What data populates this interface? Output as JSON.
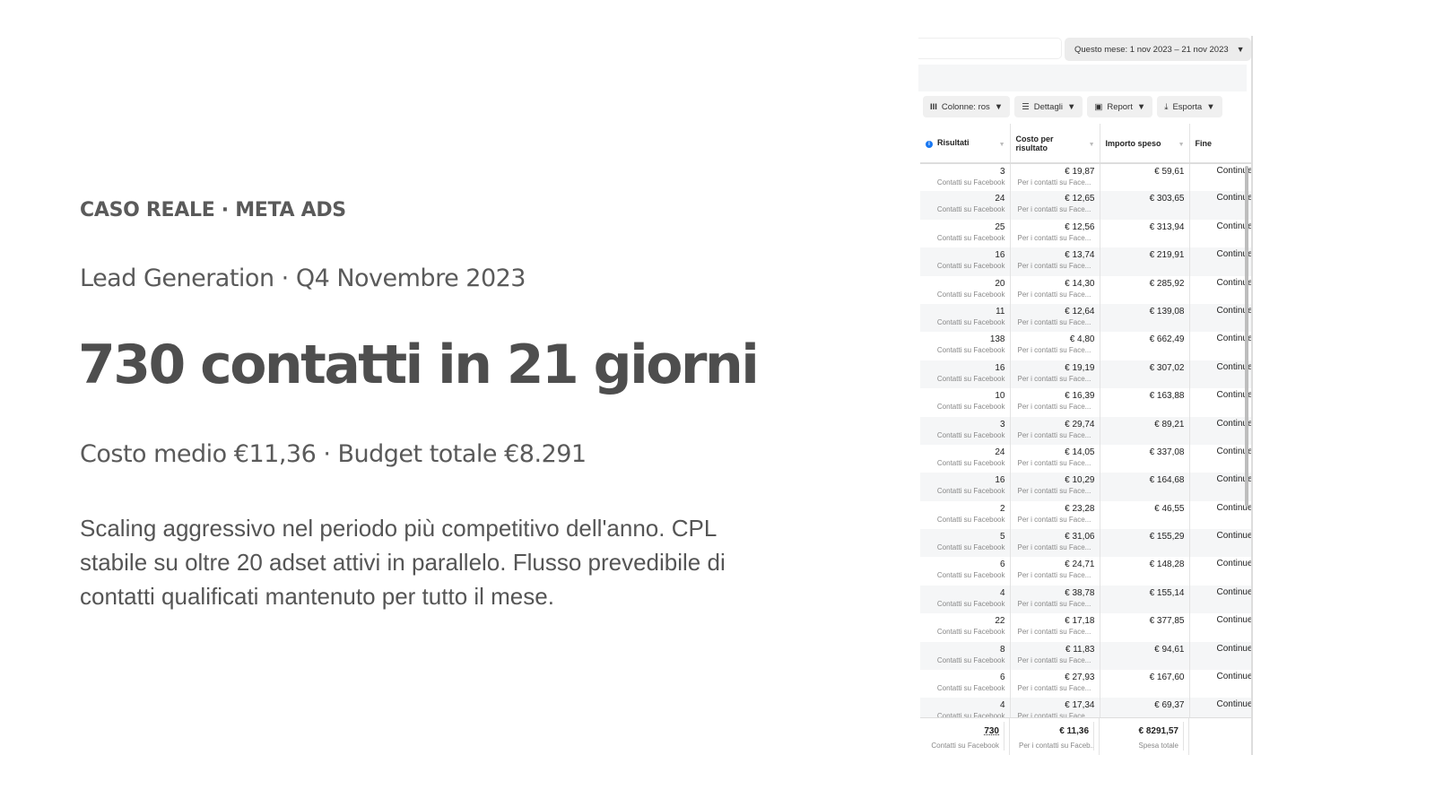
{
  "left": {
    "eyebrow": "CASO REALE · META ADS",
    "subtitle": "Lead Generation · Q4 Novembre 2023",
    "headline": "730 contatti in 21 giorni",
    "cost_line": "Costo medio €11,36 · Budget totale €8.291",
    "paragraph": "Scaling aggressivo nel periodo più competitivo dell'anno. CPL stabile su oltre 20 adset attivi in parallelo. Flusso prevedibile di contatti qualificati mantenuto per tutto il mese."
  },
  "ads": {
    "date_range": "Questo mese: 1 nov 2023 – 21 nov 2023",
    "toolbar": {
      "columns": "Colonne: ros",
      "details": "Dettagli",
      "report": "Report",
      "export": "Esporta"
    },
    "headers": {
      "results": "Risultati",
      "cost": "Costo per risultato",
      "spent": "Importo speso",
      "end": "Fine"
    },
    "result_sub": "Contatti su Facebook",
    "cost_sub": "Per i contatti su Face...",
    "end_value": "Continue",
    "rows": [
      {
        "results": "3",
        "cost": "€ 19,87",
        "spent": "€ 59,61"
      },
      {
        "results": "24",
        "cost": "€ 12,65",
        "spent": "€ 303,65"
      },
      {
        "results": "25",
        "cost": "€ 12,56",
        "spent": "€ 313,94"
      },
      {
        "results": "16",
        "cost": "€ 13,74",
        "spent": "€ 219,91"
      },
      {
        "results": "20",
        "cost": "€ 14,30",
        "spent": "€ 285,92"
      },
      {
        "results": "11",
        "cost": "€ 12,64",
        "spent": "€ 139,08"
      },
      {
        "results": "138",
        "cost": "€ 4,80",
        "spent": "€ 662,49"
      },
      {
        "results": "16",
        "cost": "€ 19,19",
        "spent": "€ 307,02"
      },
      {
        "results": "10",
        "cost": "€ 16,39",
        "spent": "€ 163,88"
      },
      {
        "results": "3",
        "cost": "€ 29,74",
        "spent": "€ 89,21"
      },
      {
        "results": "24",
        "cost": "€ 14,05",
        "spent": "€ 337,08"
      },
      {
        "results": "16",
        "cost": "€ 10,29",
        "spent": "€ 164,68"
      },
      {
        "results": "2",
        "cost": "€ 23,28",
        "spent": "€ 46,55"
      },
      {
        "results": "5",
        "cost": "€ 31,06",
        "spent": "€ 155,29"
      },
      {
        "results": "6",
        "cost": "€ 24,71",
        "spent": "€ 148,28"
      },
      {
        "results": "4",
        "cost": "€ 38,78",
        "spent": "€ 155,14"
      },
      {
        "results": "22",
        "cost": "€ 17,18",
        "spent": "€ 377,85"
      },
      {
        "results": "8",
        "cost": "€ 11,83",
        "spent": "€ 94,61"
      },
      {
        "results": "6",
        "cost": "€ 27,93",
        "spent": "€ 167,60"
      },
      {
        "results": "4",
        "cost": "€ 17,34",
        "spent": "€ 69,37"
      }
    ],
    "totals": {
      "results": "730",
      "results_sub": "Contatti su Facebook",
      "cost": "€ 11,36",
      "cost_sub": "Per i contatti su Faceb...",
      "spent": "€ 8291,57",
      "spent_sub": "Spesa totale"
    }
  }
}
